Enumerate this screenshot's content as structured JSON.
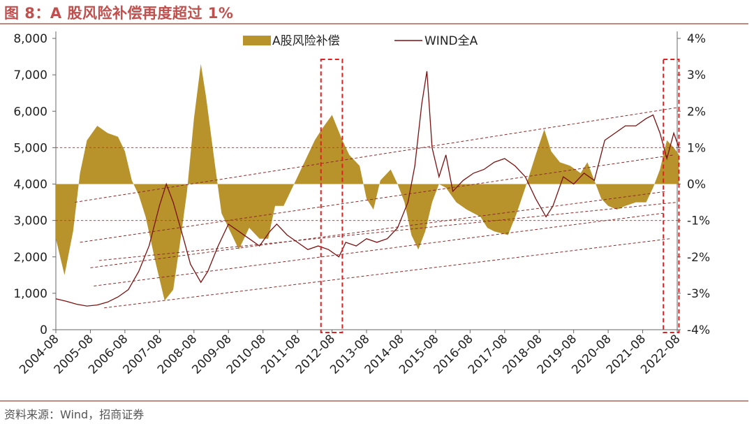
{
  "figure": {
    "title": "图 8：A 股风险补偿再度超过 1%",
    "source": "资料来源：Wind，招商证券"
  },
  "colors": {
    "premium_fill": "#b8922a",
    "wind_line": "#7b1010",
    "title": "#c0504d",
    "reference_line": "#e03030",
    "trend_line": "#8b2a2a",
    "highlight_box": "#e02020"
  },
  "chart_data": {
    "type": "area",
    "title": "",
    "x_tick_labels": [
      "2004-08",
      "2005-08",
      "2006-08",
      "2007-08",
      "2008-08",
      "2009-08",
      "2010-08",
      "2011-08",
      "2012-08",
      "2013-08",
      "2014-08",
      "2015-08",
      "2016-08",
      "2017-08",
      "2018-08",
      "2019-08",
      "2020-08",
      "2021-08",
      "2022-08"
    ],
    "left_axis": {
      "ylim": [
        0,
        8000
      ],
      "ticks": [
        "0",
        "1,000",
        "2,000",
        "3,000",
        "4,000",
        "5,000",
        "6,000",
        "7,000",
        "8,000"
      ]
    },
    "right_axis": {
      "ylim": [
        -4,
        4
      ],
      "unit": "%",
      "ticks": [
        "-4%",
        "-3%",
        "-2%",
        "-1%",
        "0%",
        "1%",
        "2%",
        "3%",
        "4%"
      ]
    },
    "legend": {
      "placement": "top-center"
    },
    "series": [
      {
        "name": "A股风险补偿",
        "axis": "right",
        "kind": "area",
        "points": [
          [
            2004.6,
            -1.5
          ],
          [
            2004.85,
            -2.5
          ],
          [
            2005.1,
            -1.3
          ],
          [
            2005.3,
            0.3
          ],
          [
            2005.5,
            1.2
          ],
          [
            2005.8,
            1.6
          ],
          [
            2006.1,
            1.4
          ],
          [
            2006.4,
            1.3
          ],
          [
            2006.6,
            0.9
          ],
          [
            2006.8,
            0.1
          ],
          [
            2007.0,
            -0.3
          ],
          [
            2007.2,
            -0.9
          ],
          [
            2007.5,
            -2.2
          ],
          [
            2007.75,
            -3.2
          ],
          [
            2008.0,
            -2.9
          ],
          [
            2008.2,
            -1.6
          ],
          [
            2008.4,
            -0.2
          ],
          [
            2008.6,
            1.8
          ],
          [
            2008.8,
            3.3
          ],
          [
            2008.95,
            2.4
          ],
          [
            2009.2,
            0.6
          ],
          [
            2009.4,
            -0.8
          ],
          [
            2009.7,
            -1.4
          ],
          [
            2009.9,
            -1.8
          ],
          [
            2010.2,
            -1.2
          ],
          [
            2010.5,
            -1.5
          ],
          [
            2010.75,
            -1.5
          ],
          [
            2010.95,
            -0.6
          ],
          [
            2011.2,
            -0.6
          ],
          [
            2011.5,
            0.0
          ],
          [
            2011.8,
            0.6
          ],
          [
            2012.1,
            1.2
          ],
          [
            2012.3,
            1.5
          ],
          [
            2012.6,
            1.9
          ],
          [
            2012.9,
            1.2
          ],
          [
            2013.1,
            0.8
          ],
          [
            2013.4,
            0.5
          ],
          [
            2013.6,
            -0.4
          ],
          [
            2013.8,
            -0.7
          ],
          [
            2014.0,
            0.1
          ],
          [
            2014.3,
            0.4
          ],
          [
            2014.5,
            0.0
          ],
          [
            2014.7,
            -0.5
          ],
          [
            2014.9,
            -1.4
          ],
          [
            2015.1,
            -1.8
          ],
          [
            2015.3,
            -1.3
          ],
          [
            2015.5,
            -0.5
          ],
          [
            2015.7,
            0.0
          ],
          [
            2015.9,
            -0.1
          ],
          [
            2016.2,
            -0.5
          ],
          [
            2016.5,
            -0.7
          ],
          [
            2016.9,
            -0.9
          ],
          [
            2017.1,
            -1.2
          ],
          [
            2017.3,
            -1.3
          ],
          [
            2017.7,
            -1.4
          ],
          [
            2017.95,
            -0.8
          ],
          [
            2018.2,
            -0.1
          ],
          [
            2018.5,
            0.8
          ],
          [
            2018.75,
            1.5
          ],
          [
            2018.95,
            0.9
          ],
          [
            2019.2,
            0.6
          ],
          [
            2019.5,
            0.5
          ],
          [
            2019.8,
            0.3
          ],
          [
            2020.0,
            0.6
          ],
          [
            2020.2,
            0.1
          ],
          [
            2020.4,
            -0.4
          ],
          [
            2020.6,
            -0.6
          ],
          [
            2020.85,
            -0.7
          ],
          [
            2021.1,
            -0.6
          ],
          [
            2021.4,
            -0.5
          ],
          [
            2021.7,
            -0.5
          ],
          [
            2021.9,
            -0.1
          ],
          [
            2022.1,
            0.4
          ],
          [
            2022.3,
            1.2
          ],
          [
            2022.5,
            1.0
          ],
          [
            2022.65,
            0.8
          ]
        ]
      },
      {
        "name": "WIND全A",
        "axis": "left",
        "kind": "line",
        "points": [
          [
            2004.6,
            850
          ],
          [
            2004.9,
            780
          ],
          [
            2005.2,
            700
          ],
          [
            2005.5,
            650
          ],
          [
            2005.8,
            680
          ],
          [
            2006.1,
            760
          ],
          [
            2006.4,
            900
          ],
          [
            2006.7,
            1100
          ],
          [
            2007.0,
            1600
          ],
          [
            2007.3,
            2300
          ],
          [
            2007.6,
            3400
          ],
          [
            2007.8,
            4000
          ],
          [
            2008.0,
            3500
          ],
          [
            2008.3,
            2500
          ],
          [
            2008.5,
            1800
          ],
          [
            2008.8,
            1300
          ],
          [
            2009.0,
            1600
          ],
          [
            2009.3,
            2300
          ],
          [
            2009.6,
            2900
          ],
          [
            2009.9,
            2700
          ],
          [
            2010.2,
            2500
          ],
          [
            2010.5,
            2300
          ],
          [
            2010.8,
            2700
          ],
          [
            2011.0,
            2900
          ],
          [
            2011.3,
            2600
          ],
          [
            2011.6,
            2400
          ],
          [
            2011.9,
            2200
          ],
          [
            2012.2,
            2300
          ],
          [
            2012.5,
            2200
          ],
          [
            2012.8,
            2000
          ],
          [
            2013.0,
            2400
          ],
          [
            2013.3,
            2300
          ],
          [
            2013.6,
            2500
          ],
          [
            2013.9,
            2400
          ],
          [
            2014.2,
            2500
          ],
          [
            2014.5,
            2800
          ],
          [
            2014.8,
            3500
          ],
          [
            2015.0,
            4500
          ],
          [
            2015.2,
            6200
          ],
          [
            2015.35,
            7100
          ],
          [
            2015.5,
            5000
          ],
          [
            2015.7,
            4200
          ],
          [
            2015.9,
            4800
          ],
          [
            2016.1,
            3800
          ],
          [
            2016.4,
            4100
          ],
          [
            2016.7,
            4300
          ],
          [
            2017.0,
            4400
          ],
          [
            2017.3,
            4600
          ],
          [
            2017.6,
            4700
          ],
          [
            2017.9,
            4500
          ],
          [
            2018.2,
            4200
          ],
          [
            2018.5,
            3600
          ],
          [
            2018.8,
            3100
          ],
          [
            2019.0,
            3400
          ],
          [
            2019.3,
            4200
          ],
          [
            2019.6,
            4000
          ],
          [
            2019.9,
            4300
          ],
          [
            2020.2,
            4100
          ],
          [
            2020.5,
            5200
          ],
          [
            2020.8,
            5400
          ],
          [
            2021.1,
            5600
          ],
          [
            2021.4,
            5600
          ],
          [
            2021.7,
            5800
          ],
          [
            2021.9,
            5900
          ],
          [
            2022.1,
            5400
          ],
          [
            2022.3,
            4700
          ],
          [
            2022.5,
            5400
          ],
          [
            2022.65,
            5000
          ]
        ]
      }
    ],
    "reference_lines": [
      {
        "axis": "right",
        "value": 1
      },
      {
        "axis": "right",
        "value": -1
      }
    ],
    "trend_lines": [
      {
        "from": [
          2005.15,
          3500
        ],
        "to": [
          2022.6,
          6100
        ]
      },
      {
        "from": [
          2005.3,
          2400
        ],
        "to": [
          2022.5,
          4800
        ]
      },
      {
        "from": [
          2005.6,
          1700
        ],
        "to": [
          2022.3,
          3800
        ]
      },
      {
        "from": [
          2005.7,
          1200
        ],
        "to": [
          2022.2,
          3200
        ]
      },
      {
        "from": [
          2006.0,
          600
        ],
        "to": [
          2022.4,
          2500
        ]
      },
      {
        "from": [
          2005.85,
          1900
        ],
        "to": [
          2022.6,
          3500
        ]
      }
    ],
    "highlight_boxes": [
      {
        "x_range": [
          2012.28,
          2012.9
        ]
      },
      {
        "x_range": [
          2022.2,
          2022.65
        ]
      }
    ]
  }
}
